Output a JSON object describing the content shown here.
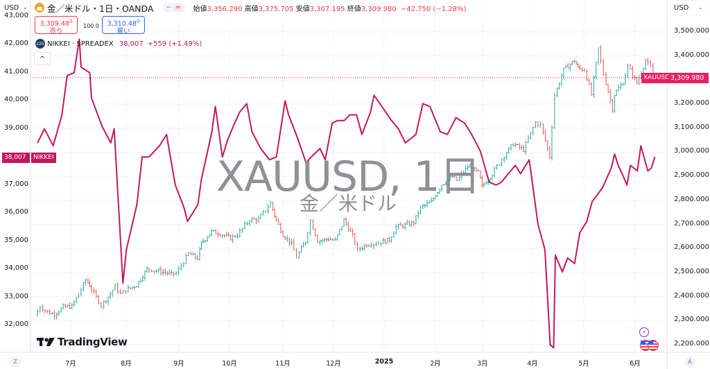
{
  "header": {
    "currency_left": "USD",
    "currency_right": "USD",
    "symbol_title": "金／米ドル・1日・OANDA",
    "pill_minus": "−",
    "pill_approx": "≈",
    "ohlc": {
      "open_label": "始値",
      "open": "3,356.290",
      "high_label": "高値",
      "high": "3,375.705",
      "low_label": "安値",
      "low": "3,307.195",
      "close_label": "終値",
      "close": "3,309.980",
      "change": "−42.750 (−1.28%)"
    },
    "sell": {
      "price": "3,309.48",
      "sup": "0",
      "label": "売り"
    },
    "spread": "100.0",
    "buy": {
      "price": "3,310.48",
      "sup": "0",
      "label": "買い"
    },
    "compare": {
      "badge": "225",
      "name": "NIKKEI · SPREADEX",
      "value": "38,007",
      "change": "+559 (+1.49%)"
    },
    "collapse_glyph": "^"
  },
  "watermark": {
    "symbol": "XAUUSD, 1日",
    "description": "金／米ドル"
  },
  "branding": {
    "logo_text": "TradingView"
  },
  "tags": {
    "xauusd_label": "XAUUSD",
    "xauusd_price": "3,309.980",
    "nikkei_price": "38,007",
    "nikkei_label": "NIKKEI"
  },
  "footer": {
    "left_btn": "Z",
    "right_btn": "A"
  },
  "colors": {
    "up": "#26a69a",
    "down": "#ef5350",
    "nikkei_line": "#c2185b",
    "tag_bg": "#e91e63",
    "nikkei_tag_bg": "#c2185b",
    "grid": "#f0f3fa"
  },
  "chart_data": {
    "type": "line",
    "title": "金／米ドル・1日・OANDA (XAUUSD) vs NIKKEI · SPREADEX",
    "xlabel": "",
    "ylabel_right": "USD (XAUUSD)",
    "ylabel_left": "NIKKEI",
    "x_ticks": [
      "7月",
      "8月",
      "9月",
      "10月",
      "11月",
      "12月",
      "2025",
      "2月",
      "3月",
      "4月",
      "5月",
      "6月"
    ],
    "right_axis_ticks": [
      "3,500.000",
      "3,400.000",
      "3,300.000",
      "3,200.000",
      "3,100.000",
      "3,000.000",
      "2,900.000",
      "2,800.000",
      "2,700.000",
      "2,600.000",
      "2,500.000",
      "2,400.000",
      "2,300.000",
      "2,200.000"
    ],
    "left_axis_ticks": [
      "43,000",
      "42,000",
      "41,000",
      "40,000",
      "39,000",
      "38,000",
      "37,000",
      "36,000",
      "35,000",
      "34,000",
      "33,000",
      "32,000"
    ],
    "right_ylim": [
      2200,
      3500
    ],
    "left_ylim": [
      31500,
      43000
    ],
    "grid": true,
    "series": [
      {
        "name": "XAUUSD (OHLC bars, approx close)",
        "axis": "right",
        "points": [
          [
            "2024-06-17",
            2320
          ],
          [
            "2024-06-20",
            2360
          ],
          [
            "2024-06-24",
            2335
          ],
          [
            "2024-06-28",
            2327
          ],
          [
            "2024-07-03",
            2356
          ],
          [
            "2024-07-08",
            2360
          ],
          [
            "2024-07-12",
            2411
          ],
          [
            "2024-07-16",
            2469
          ],
          [
            "2024-07-18",
            2445
          ],
          [
            "2024-07-22",
            2397
          ],
          [
            "2024-07-25",
            2365
          ],
          [
            "2024-07-30",
            2411
          ],
          [
            "2024-08-02",
            2443
          ],
          [
            "2024-08-05",
            2410
          ],
          [
            "2024-08-08",
            2427
          ],
          [
            "2024-08-14",
            2448
          ],
          [
            "2024-08-20",
            2514
          ],
          [
            "2024-08-23",
            2512
          ],
          [
            "2024-08-28",
            2504
          ],
          [
            "2024-09-03",
            2493
          ],
          [
            "2024-09-06",
            2497
          ],
          [
            "2024-09-13",
            2578
          ],
          [
            "2024-09-18",
            2560
          ],
          [
            "2024-09-20",
            2622
          ],
          [
            "2024-09-26",
            2670
          ],
          [
            "2024-10-01",
            2662
          ],
          [
            "2024-10-07",
            2643
          ],
          [
            "2024-10-11",
            2657
          ],
          [
            "2024-10-18",
            2720
          ],
          [
            "2024-10-23",
            2720
          ],
          [
            "2024-10-30",
            2788
          ],
          [
            "2024-11-01",
            2737
          ],
          [
            "2024-11-06",
            2658
          ],
          [
            "2024-11-11",
            2618
          ],
          [
            "2024-11-14",
            2565
          ],
          [
            "2024-11-19",
            2631
          ],
          [
            "2024-11-22",
            2715
          ],
          [
            "2024-11-26",
            2632
          ],
          [
            "2024-12-02",
            2640
          ],
          [
            "2024-12-06",
            2633
          ],
          [
            "2024-12-11",
            2718
          ],
          [
            "2024-12-16",
            2652
          ],
          [
            "2024-12-19",
            2594
          ],
          [
            "2024-12-24",
            2617
          ],
          [
            "2024-12-31",
            2624
          ],
          [
            "2025-01-06",
            2636
          ],
          [
            "2025-01-10",
            2690
          ],
          [
            "2025-01-15",
            2697
          ],
          [
            "2025-01-20",
            2708
          ],
          [
            "2025-01-24",
            2770
          ],
          [
            "2025-01-30",
            2794
          ],
          [
            "2025-02-05",
            2866
          ],
          [
            "2025-02-11",
            2898
          ],
          [
            "2025-02-14",
            2882
          ],
          [
            "2025-02-20",
            2940
          ],
          [
            "2025-02-26",
            2916
          ],
          [
            "2025-02-28",
            2858
          ],
          [
            "2025-03-06",
            2910
          ],
          [
            "2025-03-13",
            2987
          ],
          [
            "2025-03-18",
            3035
          ],
          [
            "2025-03-24",
            3010
          ],
          [
            "2025-03-31",
            3124
          ],
          [
            "2025-04-03",
            3114
          ],
          [
            "2025-04-08",
            2982
          ],
          [
            "2025-04-11",
            3237
          ],
          [
            "2025-04-16",
            3343
          ],
          [
            "2025-04-22",
            3381
          ],
          [
            "2025-04-24",
            3349
          ],
          [
            "2025-04-28",
            3343
          ],
          [
            "2025-05-02",
            3240
          ],
          [
            "2025-05-06",
            3431
          ],
          [
            "2025-05-09",
            3325
          ],
          [
            "2025-05-14",
            3180
          ],
          [
            "2025-05-15",
            3240
          ],
          [
            "2025-05-20",
            3290
          ],
          [
            "2025-05-23",
            3357
          ],
          [
            "2025-05-28",
            3288
          ],
          [
            "2025-06-02",
            3380
          ],
          [
            "2025-06-05",
            3352
          ],
          [
            "2025-06-06",
            3310
          ]
        ],
        "last": 3309.98,
        "high_peak": 3500,
        "low_trough": 2295
      },
      {
        "name": "NIKKEI · SPREADEX",
        "axis": "left",
        "points": [
          [
            "2024-06-17",
            38500
          ],
          [
            "2024-06-21",
            39000
          ],
          [
            "2024-06-26",
            38400
          ],
          [
            "2024-07-01",
            39500
          ],
          [
            "2024-07-04",
            40900
          ],
          [
            "2024-07-08",
            41000
          ],
          [
            "2024-07-11",
            42200
          ],
          [
            "2024-07-12",
            41200
          ],
          [
            "2024-07-17",
            41000
          ],
          [
            "2024-07-18",
            40100
          ],
          [
            "2024-07-24",
            39100
          ],
          [
            "2024-07-29",
            38500
          ],
          [
            "2024-07-31",
            39000
          ],
          [
            "2024-08-05",
            33500
          ],
          [
            "2024-08-07",
            34700
          ],
          [
            "2024-08-13",
            36300
          ],
          [
            "2024-08-16",
            38000
          ],
          [
            "2024-08-20",
            38000
          ],
          [
            "2024-08-26",
            38400
          ],
          [
            "2024-08-30",
            38800
          ],
          [
            "2024-09-04",
            37000
          ],
          [
            "2024-09-09",
            36200
          ],
          [
            "2024-09-11",
            35700
          ],
          [
            "2024-09-17",
            36300
          ],
          [
            "2024-09-19",
            37200
          ],
          [
            "2024-09-25",
            38900
          ],
          [
            "2024-09-27",
            39800
          ],
          [
            "2024-10-01",
            38000
          ],
          [
            "2024-10-04",
            38600
          ],
          [
            "2024-10-08",
            39200
          ],
          [
            "2024-10-11",
            39600
          ],
          [
            "2024-10-15",
            39900
          ],
          [
            "2024-10-18",
            38900
          ],
          [
            "2024-10-23",
            38300
          ],
          [
            "2024-10-28",
            37900
          ],
          [
            "2024-11-01",
            38000
          ],
          [
            "2024-11-06",
            40000
          ],
          [
            "2024-11-08",
            39500
          ],
          [
            "2024-11-13",
            38700
          ],
          [
            "2024-11-18",
            37800
          ],
          [
            "2024-11-21",
            38000
          ],
          [
            "2024-11-26",
            38300
          ],
          [
            "2024-11-29",
            37900
          ],
          [
            "2024-12-03",
            39200
          ],
          [
            "2024-12-06",
            39300
          ],
          [
            "2024-12-10",
            39300
          ],
          [
            "2024-12-13",
            39500
          ],
          [
            "2024-12-17",
            39500
          ],
          [
            "2024-12-20",
            38800
          ],
          [
            "2024-12-25",
            39600
          ],
          [
            "2024-12-27",
            40200
          ],
          [
            "2025-01-06",
            39300
          ],
          [
            "2025-01-10",
            39000
          ],
          [
            "2025-01-14",
            38500
          ],
          [
            "2025-01-20",
            38800
          ],
          [
            "2025-01-24",
            39900
          ],
          [
            "2025-01-28",
            39800
          ],
          [
            "2025-02-03",
            38900
          ],
          [
            "2025-02-07",
            38800
          ],
          [
            "2025-02-12",
            39400
          ],
          [
            "2025-02-17",
            39200
          ],
          [
            "2025-02-21",
            38800
          ],
          [
            "2025-02-26",
            38200
          ],
          [
            "2025-03-03",
            37100
          ],
          [
            "2025-03-07",
            37000
          ],
          [
            "2025-03-10",
            37100
          ],
          [
            "2025-03-14",
            37400
          ],
          [
            "2025-03-18",
            37700
          ],
          [
            "2025-03-21",
            37400
          ],
          [
            "2025-03-26",
            37900
          ],
          [
            "2025-03-31",
            35600
          ],
          [
            "2025-04-04",
            34700
          ],
          [
            "2025-04-07",
            31300
          ],
          [
            "2025-04-09",
            31200
          ],
          [
            "2025-04-10",
            34500
          ],
          [
            "2025-04-14",
            33900
          ],
          [
            "2025-04-17",
            34400
          ],
          [
            "2025-04-21",
            34200
          ],
          [
            "2025-04-24",
            35300
          ],
          [
            "2025-04-28",
            35700
          ],
          [
            "2025-05-01",
            36400
          ],
          [
            "2025-05-07",
            36900
          ],
          [
            "2025-05-12",
            37600
          ],
          [
            "2025-05-14",
            38100
          ],
          [
            "2025-05-16",
            37700
          ],
          [
            "2025-05-19",
            37300
          ],
          [
            "2025-05-21",
            37000
          ],
          [
            "2025-05-23",
            37700
          ],
          [
            "2025-05-27",
            37500
          ],
          [
            "2025-05-29",
            38400
          ],
          [
            "2025-06-02",
            37500
          ],
          [
            "2025-06-04",
            37600
          ],
          [
            "2025-06-06",
            38007
          ]
        ],
        "last": 38007,
        "change": "+559 (+1.49%)"
      }
    ]
  }
}
